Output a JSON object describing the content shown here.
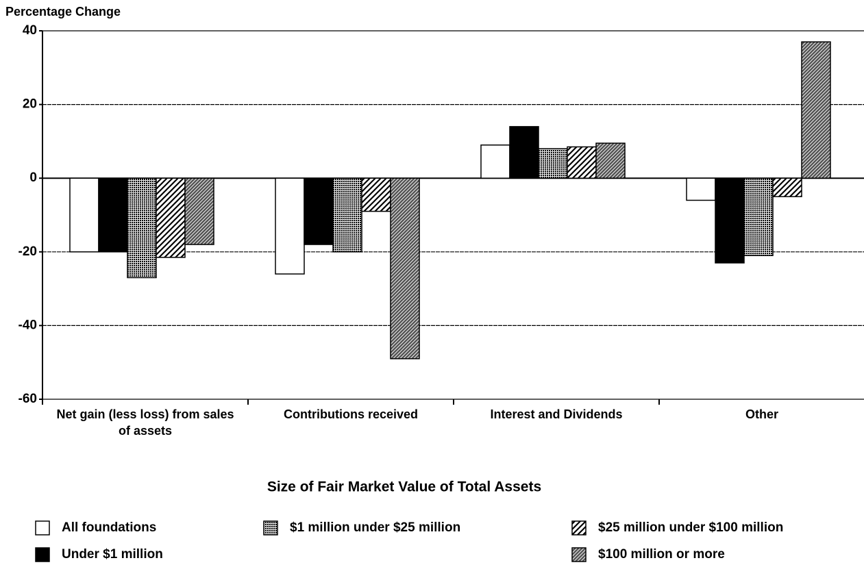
{
  "chart_data": {
    "type": "bar",
    "y_label": "Percentage Change",
    "legend_title": "Size of Fair Market Value of Total Assets",
    "categories": [
      "Net gain (less loss) from sales of assets",
      "Contributions received",
      "Interest and Dividends",
      "Other"
    ],
    "series": [
      {
        "name": "All foundations",
        "color": "#ffffff",
        "pattern": "solid",
        "values": [
          -20,
          -26,
          9,
          -6
        ]
      },
      {
        "name": "Under $1 million",
        "color": "#000000",
        "pattern": "solid",
        "values": [
          -20,
          -18,
          14,
          -23
        ]
      },
      {
        "name": "$1 million under $25 million",
        "color": "#7a7a7a",
        "pattern": "dots",
        "values": [
          -27,
          -20,
          8,
          -21
        ]
      },
      {
        "name": "$25 million under $100 million",
        "color": "#ffffff",
        "pattern": "hatch",
        "values": [
          -21.5,
          -9,
          8.5,
          -5
        ]
      },
      {
        "name": "$100 million or more",
        "color": "#555555",
        "pattern": "dense-hatch",
        "values": [
          -18,
          -49,
          9.5,
          37
        ]
      }
    ],
    "ylim": [
      -60,
      40
    ],
    "yticks": [
      -60,
      -40,
      -20,
      0,
      20,
      40
    ],
    "grid": true
  }
}
